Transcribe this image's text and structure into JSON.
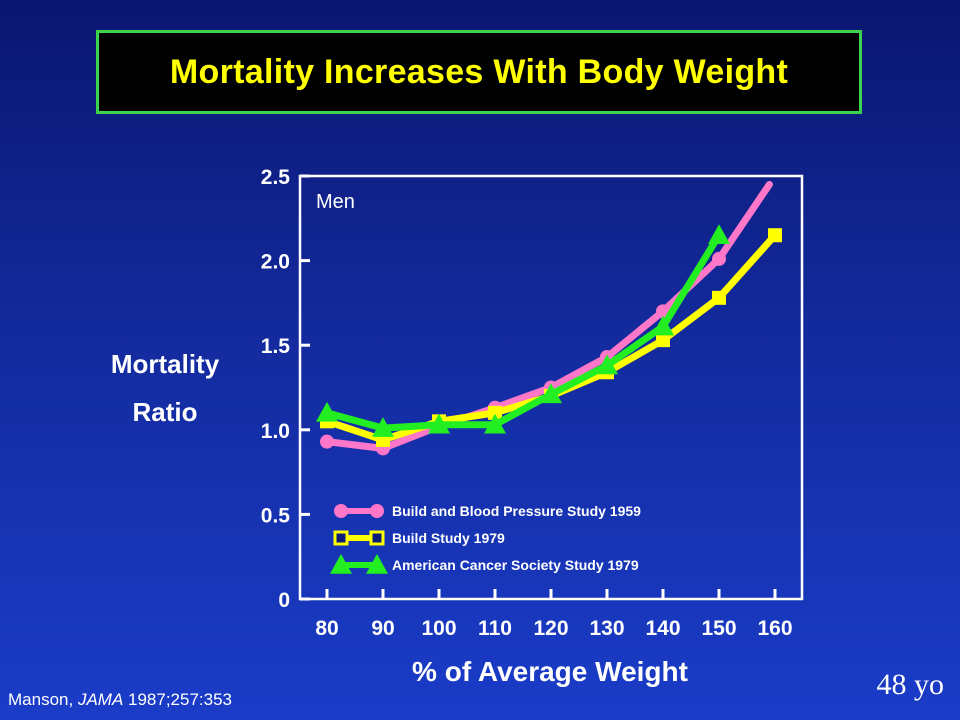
{
  "slide": {
    "title": "Mortality Increases With Body Weight",
    "source_author": "Manson, ",
    "source_journal": "JAMA",
    "source_ref": " 1987;257:353",
    "age_note": "48 yo"
  },
  "chart_data": {
    "type": "line",
    "title": "Mortality Increases With Body Weight",
    "panel_label": "Men",
    "xlabel": "% of Average Weight",
    "ylabel_line1": "Mortality",
    "ylabel_line2": "Ratio",
    "x": [
      80,
      90,
      100,
      110,
      120,
      130,
      140,
      150,
      160
    ],
    "xlim": [
      80,
      160
    ],
    "ylim": [
      0,
      2.5
    ],
    "y_ticks": [
      0,
      0.5,
      1.0,
      1.5,
      2.0,
      2.5
    ],
    "y_tick_labels": [
      "0",
      "0.5",
      "1.0",
      "1.5",
      "2.0",
      "2.5"
    ],
    "x_tick_labels": [
      "80",
      "90",
      "100",
      "110",
      "120",
      "130",
      "140",
      "150",
      "160"
    ],
    "grid": false,
    "legend_position": "bottom-left",
    "series": [
      {
        "name": "Build and Blood Pressure Study 1959",
        "color": "#ff77c8",
        "marker": "circle",
        "x": [
          80,
          90,
          100,
          110,
          120,
          130,
          140,
          150,
          159
        ],
        "values": [
          0.93,
          0.89,
          1.02,
          1.13,
          1.25,
          1.43,
          1.7,
          2.01,
          2.45
        ],
        "marker_mask": [
          true,
          true,
          true,
          true,
          true,
          true,
          true,
          true,
          false
        ]
      },
      {
        "name": "Build Study 1979",
        "color": "#ffff00",
        "marker": "square",
        "x": [
          80,
          90,
          100,
          110,
          120,
          130,
          140,
          150,
          160
        ],
        "values": [
          1.05,
          0.94,
          1.05,
          1.1,
          1.2,
          1.34,
          1.53,
          1.78,
          2.15
        ],
        "marker_mask": [
          true,
          true,
          true,
          true,
          true,
          true,
          true,
          true,
          true
        ]
      },
      {
        "name": "American Cancer Society Study 1979",
        "color": "#22ee22",
        "marker": "triangle",
        "x": [
          80,
          90,
          100,
          110,
          120,
          130,
          140,
          150
        ],
        "values": [
          1.1,
          1.01,
          1.03,
          1.03,
          1.21,
          1.38,
          1.61,
          2.15
        ],
        "marker_mask": [
          true,
          true,
          true,
          true,
          true,
          true,
          true,
          true
        ]
      }
    ]
  }
}
